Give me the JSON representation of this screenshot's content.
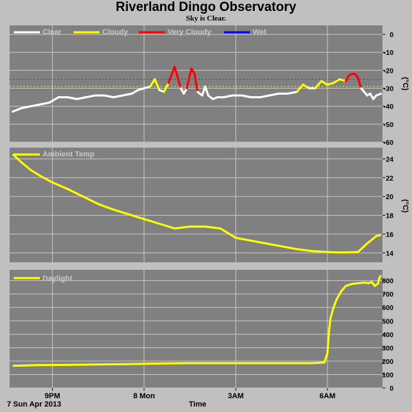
{
  "title": "Riverland Dingo Observatory",
  "subtitle": "Sky is Clear.",
  "footer": {
    "date": "7 Sun Apr 2013",
    "xlabel": "Time"
  },
  "colors": {
    "background": "#c0c0c0",
    "plot_bg": "#808080",
    "grid": "#c8c8c8",
    "clear": "#ffffff",
    "cloudy": "#ffff00",
    "very_cloudy": "#ff0000",
    "wet": "#0000ff",
    "threshold_cloudy": "#ffff00",
    "threshold_very_cloudy": "#ff0000"
  },
  "chart_data": [
    {
      "type": "line",
      "panel": "sky",
      "ylabel": "(°C)",
      "ylim": [
        -60,
        5
      ],
      "yticks": [
        "0",
        "-10",
        "-20",
        "-30",
        "-40",
        "-50",
        "-60"
      ],
      "xlim": [
        19.6,
        31.8
      ],
      "xticks": [
        "9PM",
        "8 Mon",
        "3AM",
        "6AM"
      ],
      "grid": true,
      "legend_position": "top-left",
      "legend": [
        "Clear",
        "Cloudy",
        "Very Cloudy",
        "Wet"
      ],
      "thresholds": {
        "cloudy": -29,
        "very_cloudy": -25
      },
      "x": [
        19.7,
        20.0,
        20.3,
        20.6,
        20.9,
        21.2,
        21.5,
        21.8,
        22.1,
        22.4,
        22.7,
        23.0,
        23.3,
        23.6,
        23.8,
        24.0,
        24.2,
        24.35,
        24.5,
        24.65,
        24.8,
        25.0,
        25.1,
        25.2,
        25.3,
        25.4,
        25.55,
        25.65,
        25.75,
        25.9,
        26.0,
        26.1,
        26.25,
        26.4,
        26.6,
        26.9,
        27.2,
        27.5,
        27.8,
        28.1,
        28.4,
        28.7,
        29.0,
        29.2,
        29.4,
        29.6,
        29.8,
        30.0,
        30.2,
        30.4,
        30.6,
        30.7,
        30.8,
        30.9,
        31.0,
        31.1,
        31.2,
        31.3,
        31.4,
        31.5,
        31.6,
        31.75
      ],
      "values": [
        -43,
        -41,
        -40,
        -39,
        -38,
        -35,
        -35,
        -36,
        -35,
        -34,
        -34,
        -35,
        -34,
        -33,
        -31,
        -30,
        -29,
        -25,
        -31,
        -32,
        -27,
        -18,
        -24,
        -30,
        -33,
        -30,
        -19,
        -22,
        -32,
        -34,
        -29,
        -34,
        -36,
        -35,
        -35,
        -34,
        -34,
        -35,
        -35,
        -34,
        -33,
        -33,
        -32,
        -28,
        -30,
        -30,
        -26,
        -28,
        -27,
        -25,
        -26,
        -23,
        -22,
        -22,
        -24,
        -30,
        -32,
        -34,
        -33,
        -36,
        -34,
        -33
      ]
    },
    {
      "type": "line",
      "panel": "ambient",
      "ylabel": "(°C)",
      "ylim": [
        13,
        25.2
      ],
      "yticks": [
        "24",
        "22",
        "20",
        "18",
        "16",
        "14"
      ],
      "xlim": [
        19.6,
        31.8
      ],
      "grid": true,
      "legend_position": "top-left",
      "series": [
        {
          "name": "Ambient Temp",
          "x": [
            19.7,
            20.0,
            20.3,
            20.6,
            21.0,
            21.5,
            22.0,
            22.5,
            23.0,
            23.5,
            24.0,
            24.5,
            25.0,
            25.5,
            26.0,
            26.5,
            27.0,
            27.5,
            28.0,
            28.5,
            29.0,
            29.5,
            30.0,
            30.3,
            30.6,
            31.0,
            31.3,
            31.6,
            31.75
          ],
          "values": [
            24.5,
            23.6,
            22.8,
            22.2,
            21.5,
            20.8,
            20.0,
            19.2,
            18.6,
            18.1,
            17.6,
            17.1,
            16.6,
            16.8,
            16.8,
            16.6,
            15.6,
            15.3,
            15.0,
            14.7,
            14.4,
            14.2,
            14.1,
            14.05,
            14.05,
            14.1,
            15.0,
            15.8,
            15.9
          ]
        }
      ]
    },
    {
      "type": "line",
      "panel": "daylight",
      "ylim": [
        0,
        880
      ],
      "yticks": [
        "800",
        "700",
        "600",
        "500",
        "400",
        "300",
        "200",
        "100",
        "0"
      ],
      "xlim": [
        19.6,
        31.8
      ],
      "grid": true,
      "legend_position": "top-left",
      "series": [
        {
          "name": "Daylight",
          "x": [
            19.7,
            20.5,
            21.5,
            22.5,
            23.5,
            24.5,
            25.5,
            26.5,
            27.5,
            28.5,
            29.5,
            29.9,
            30.0,
            30.05,
            30.1,
            30.2,
            30.3,
            30.45,
            30.6,
            30.8,
            31.0,
            31.2,
            31.35,
            31.45,
            31.55,
            31.6,
            31.65,
            31.7,
            31.75
          ],
          "values": [
            165,
            170,
            172,
            175,
            178,
            182,
            185,
            185,
            185,
            185,
            185,
            190,
            260,
            420,
            520,
            600,
            660,
            720,
            760,
            775,
            780,
            785,
            780,
            790,
            760,
            770,
            775,
            820,
            840
          ]
        }
      ]
    }
  ]
}
